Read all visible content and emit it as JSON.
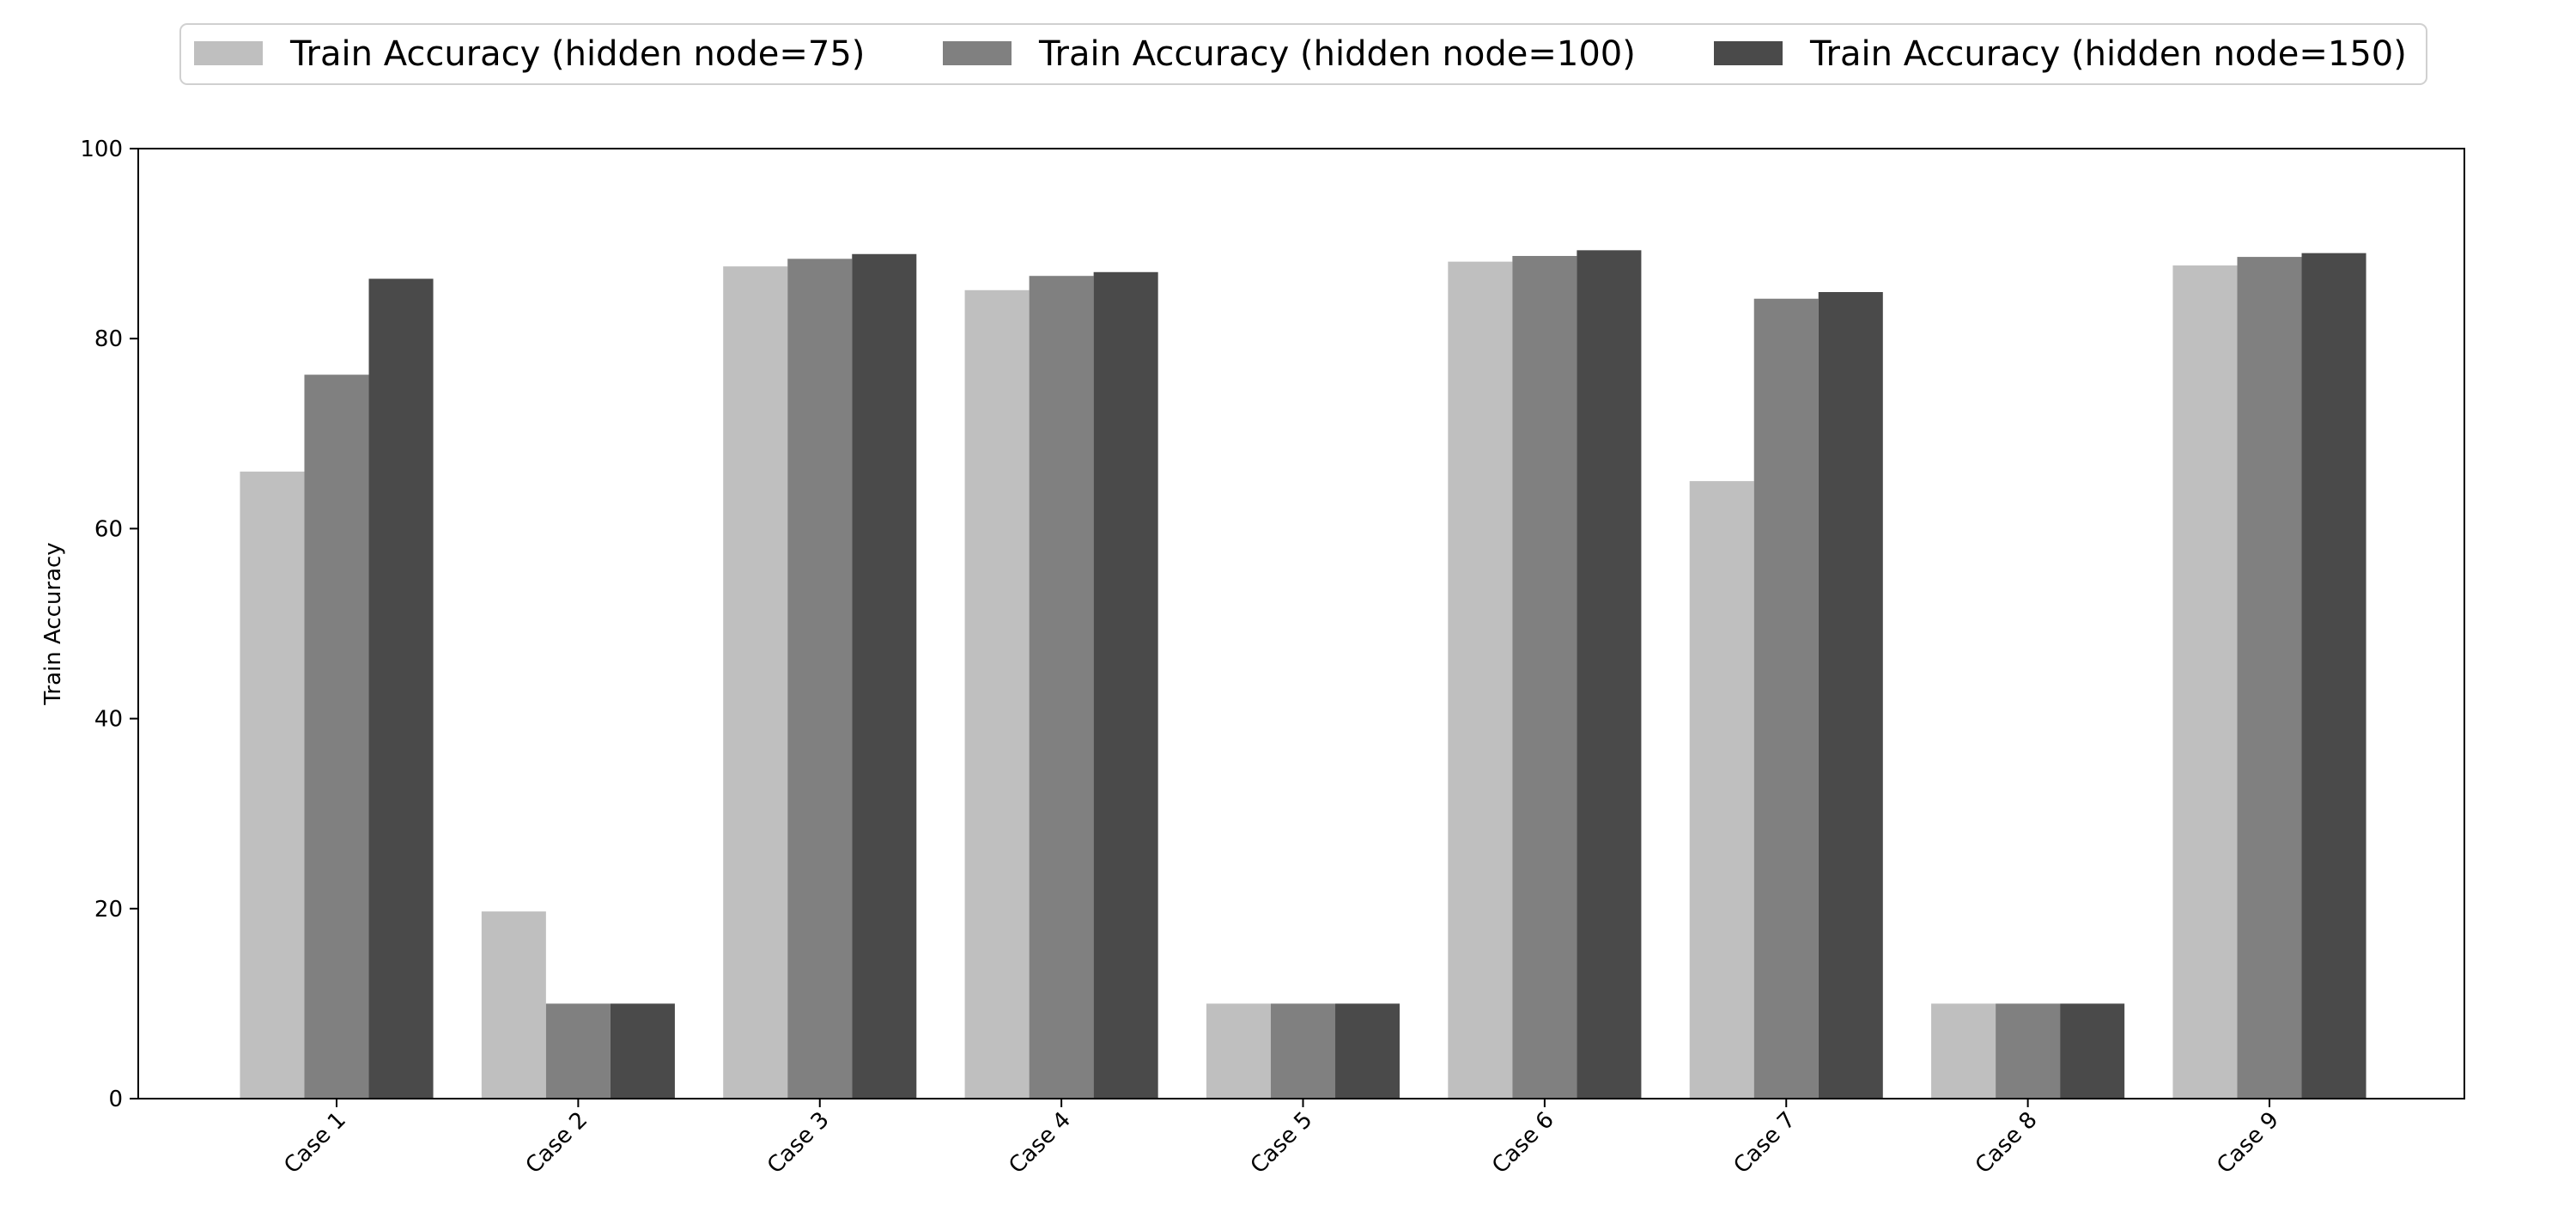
{
  "chart_data": {
    "type": "bar",
    "categories": [
      "Case 1",
      "Case 2",
      "Case 3",
      "Case 4",
      "Case 5",
      "Case 6",
      "Case 7",
      "Case 8",
      "Case 9"
    ],
    "series": [
      {
        "name": "Train Accuracy (hidden node=75)",
        "color": "#bfbfbf",
        "values": [
          66.0,
          19.7,
          87.6,
          85.1,
          10.0,
          88.1,
          65.0,
          10.0,
          87.7
        ]
      },
      {
        "name": "Train Accuracy (hidden node=100)",
        "color": "#808080",
        "values": [
          76.2,
          10.0,
          88.4,
          86.6,
          10.0,
          88.7,
          84.2,
          10.0,
          88.6
        ]
      },
      {
        "name": "Train Accuracy (hidden node=150)",
        "color": "#4a4a4a",
        "values": [
          86.3,
          10.0,
          88.9,
          87.0,
          10.0,
          89.3,
          84.9,
          10.0,
          89.0
        ]
      }
    ],
    "xlabel": "",
    "ylabel": "Train Accuracy",
    "ylim": [
      0,
      100
    ],
    "yticks": [
      0,
      20,
      40,
      60,
      80,
      100
    ],
    "grid": false,
    "legend_position": "top-center"
  }
}
